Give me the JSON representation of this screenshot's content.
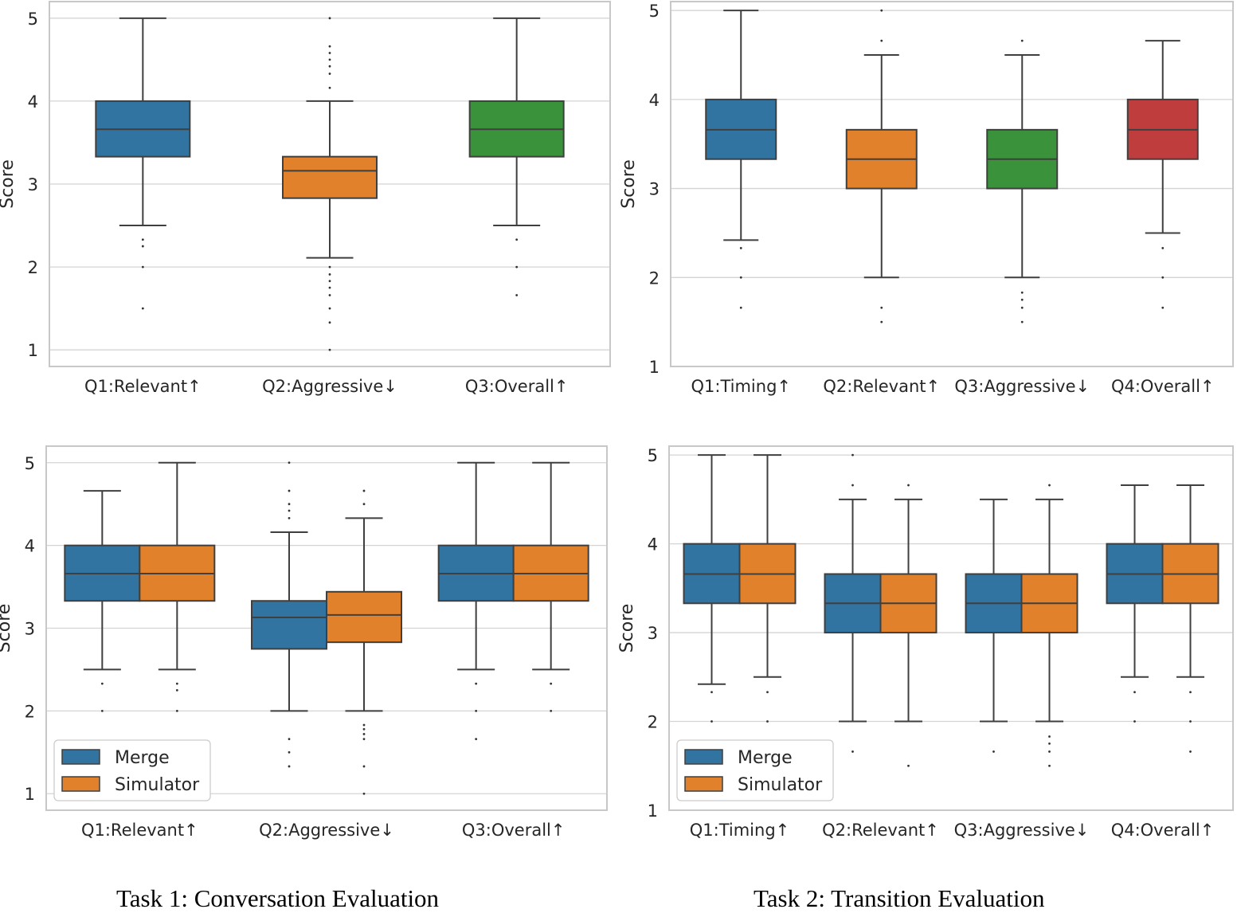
{
  "captions": {
    "task1": "Task 1: Conversation Evaluation",
    "task2": "Task 2: Transition Evaluation"
  },
  "colors": {
    "blue": "#3274a1",
    "orange": "#e1812c",
    "green": "#3a923a",
    "red": "#c03d3e",
    "grid": "#d4d4d4",
    "spine": "#c8c8c8",
    "line": "#3f3f3f"
  },
  "chart_data": [
    {
      "id": "task1-single",
      "type": "box",
      "title": "",
      "xlabel": "",
      "ylabel": "Score",
      "ylim": [
        0.8,
        5.2
      ],
      "yticks": [
        1,
        2,
        3,
        4,
        5
      ],
      "categories": [
        "Q1:Relevant↑",
        "Q2:Aggressive↓",
        "Q3:Overall↑"
      ],
      "series": [
        {
          "name": "",
          "boxes": [
            {
              "color": "blue",
              "q1": 3.33,
              "median": 3.66,
              "q3": 4.0,
              "whislo": 2.5,
              "whishi": 5.0,
              "fliers": [
                2.33,
                2.25,
                2.0,
                1.5
              ]
            },
            {
              "color": "orange",
              "q1": 2.83,
              "median": 3.16,
              "q3": 3.33,
              "whislo": 2.11,
              "whishi": 4.0,
              "fliers": [
                5.0,
                4.66,
                4.58,
                4.5,
                4.42,
                4.33,
                4.16,
                2.0,
                1.91,
                1.83,
                1.75,
                1.66,
                1.5,
                1.33,
                1.0
              ]
            },
            {
              "color": "green",
              "q1": 3.33,
              "median": 3.66,
              "q3": 4.0,
              "whislo": 2.5,
              "whishi": 5.0,
              "fliers": [
                2.33,
                2.0,
                1.66
              ]
            }
          ]
        }
      ]
    },
    {
      "id": "task2-single",
      "type": "box",
      "title": "",
      "xlabel": "",
      "ylabel": "Score",
      "ylim": [
        1.0,
        5.1
      ],
      "yticks": [
        1,
        2,
        3,
        4,
        5
      ],
      "categories": [
        "Q1:Timing↑",
        "Q2:Relevant↑",
        "Q3:Aggressive↓",
        "Q4:Overall↑"
      ],
      "series": [
        {
          "name": "",
          "boxes": [
            {
              "color": "blue",
              "q1": 3.33,
              "median": 3.66,
              "q3": 4.0,
              "whislo": 2.42,
              "whishi": 5.0,
              "fliers": [
                2.33,
                2.0,
                1.66
              ]
            },
            {
              "color": "orange",
              "q1": 3.0,
              "median": 3.33,
              "q3": 3.66,
              "whislo": 2.0,
              "whishi": 4.5,
              "fliers": [
                5.0,
                4.66,
                1.66,
                1.5
              ]
            },
            {
              "color": "green",
              "q1": 3.0,
              "median": 3.33,
              "q3": 3.66,
              "whislo": 2.0,
              "whishi": 4.5,
              "fliers": [
                4.66,
                1.83,
                1.75,
                1.66,
                1.5
              ]
            },
            {
              "color": "red",
              "q1": 3.33,
              "median": 3.66,
              "q3": 4.0,
              "whislo": 2.5,
              "whishi": 4.66,
              "fliers": [
                2.33,
                2.0,
                1.66
              ]
            }
          ]
        }
      ]
    },
    {
      "id": "task1-grouped",
      "type": "box",
      "title": "",
      "xlabel": "",
      "ylabel": "Score",
      "ylim": [
        0.8,
        5.2
      ],
      "yticks": [
        1,
        2,
        3,
        4,
        5
      ],
      "categories": [
        "Q1:Relevant↑",
        "Q2:Aggressive↓",
        "Q3:Overall↑"
      ],
      "legend": {
        "position": "lower-left",
        "entries": [
          "Merge",
          "Simulator"
        ]
      },
      "series": [
        {
          "name": "Merge",
          "color": "blue",
          "boxes": [
            {
              "q1": 3.33,
              "median": 3.66,
              "q3": 4.0,
              "whislo": 2.5,
              "whishi": 4.66,
              "fliers": [
                2.33,
                2.0
              ]
            },
            {
              "q1": 2.75,
              "median": 3.13,
              "q3": 3.33,
              "whislo": 2.0,
              "whishi": 4.16,
              "fliers": [
                5.0,
                4.66,
                4.5,
                4.42,
                4.33,
                1.66,
                1.5,
                1.33
              ]
            },
            {
              "q1": 3.33,
              "median": 3.66,
              "q3": 4.0,
              "whislo": 2.5,
              "whishi": 5.0,
              "fliers": [
                2.33,
                2.0,
                1.66
              ]
            }
          ]
        },
        {
          "name": "Simulator",
          "color": "orange",
          "boxes": [
            {
              "q1": 3.33,
              "median": 3.66,
              "q3": 4.0,
              "whislo": 2.5,
              "whishi": 5.0,
              "fliers": [
                2.33,
                2.25,
                2.0
              ]
            },
            {
              "q1": 2.83,
              "median": 3.16,
              "q3": 3.44,
              "whislo": 2.0,
              "whishi": 4.33,
              "fliers": [
                4.66,
                4.5,
                1.83,
                1.78,
                1.72,
                1.66,
                1.33,
                1.0
              ]
            },
            {
              "q1": 3.33,
              "median": 3.66,
              "q3": 4.0,
              "whislo": 2.5,
              "whishi": 5.0,
              "fliers": [
                2.33,
                2.0
              ]
            }
          ]
        }
      ]
    },
    {
      "id": "task2-grouped",
      "type": "box",
      "title": "",
      "xlabel": "",
      "ylabel": "Score",
      "ylim": [
        1.0,
        5.1
      ],
      "yticks": [
        1,
        2,
        3,
        4,
        5
      ],
      "categories": [
        "Q1:Timing↑",
        "Q2:Relevant↑",
        "Q3:Aggressive↓",
        "Q4:Overall↑"
      ],
      "legend": {
        "position": "lower-left",
        "entries": [
          "Merge",
          "Simulator"
        ]
      },
      "series": [
        {
          "name": "Merge",
          "color": "blue",
          "boxes": [
            {
              "q1": 3.33,
              "median": 3.66,
              "q3": 4.0,
              "whislo": 2.42,
              "whishi": 5.0,
              "fliers": [
                2.33,
                2.0
              ]
            },
            {
              "q1": 3.0,
              "median": 3.33,
              "q3": 3.66,
              "whislo": 2.0,
              "whishi": 4.5,
              "fliers": [
                5.0,
                4.66,
                1.66
              ]
            },
            {
              "q1": 3.0,
              "median": 3.33,
              "q3": 3.66,
              "whislo": 2.0,
              "whishi": 4.5,
              "fliers": [
                1.66
              ]
            },
            {
              "q1": 3.33,
              "median": 3.66,
              "q3": 4.0,
              "whislo": 2.5,
              "whishi": 4.66,
              "fliers": [
                2.33,
                2.0
              ]
            }
          ]
        },
        {
          "name": "Simulator",
          "color": "orange",
          "boxes": [
            {
              "q1": 3.33,
              "median": 3.66,
              "q3": 4.0,
              "whislo": 2.5,
              "whishi": 5.0,
              "fliers": [
                2.33,
                2.0
              ]
            },
            {
              "q1": 3.0,
              "median": 3.33,
              "q3": 3.66,
              "whislo": 2.0,
              "whishi": 4.5,
              "fliers": [
                4.66,
                1.5
              ]
            },
            {
              "q1": 3.0,
              "median": 3.33,
              "q3": 3.66,
              "whislo": 2.0,
              "whishi": 4.5,
              "fliers": [
                4.66,
                1.83,
                1.75,
                1.66,
                1.5
              ]
            },
            {
              "q1": 3.33,
              "median": 3.66,
              "q3": 4.0,
              "whislo": 2.5,
              "whishi": 4.66,
              "fliers": [
                2.33,
                2.0,
                1.66
              ]
            }
          ]
        }
      ]
    }
  ]
}
